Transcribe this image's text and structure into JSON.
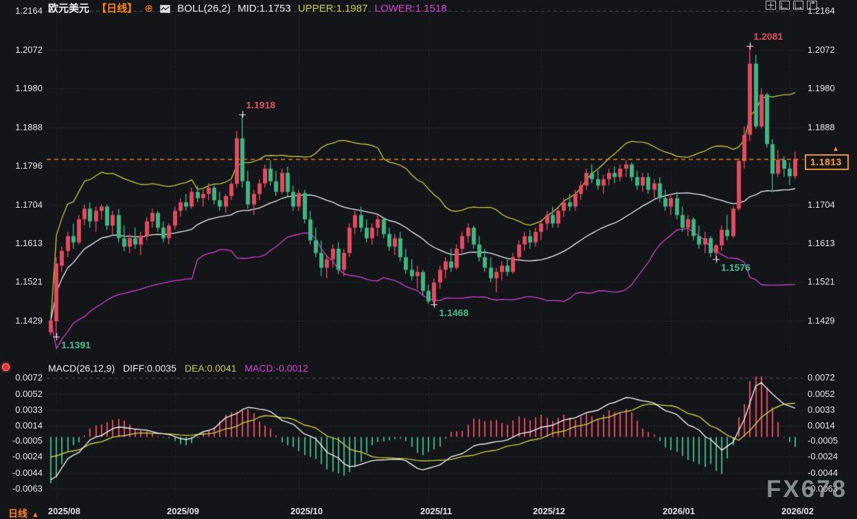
{
  "header": {
    "symbol": "欧元美元",
    "period": "【日线】",
    "add_icon": "⊕",
    "boll_label": "BOLL(26,2)",
    "mid_label": "MID:1.1753",
    "upper_label": "UPPER:1.1987",
    "lower_label": "LOWER:1.1518"
  },
  "toolbar": {
    "icons": [
      "crosshair-icon",
      "align-left-icon",
      "align-right-icon",
      "export-icon"
    ]
  },
  "macd_header": {
    "name": "MACD(26,12,9)",
    "diff_label": "DIFF:0.0035",
    "dea_label": "DEA:0.0041",
    "macd_label": "MACD:-0.0012"
  },
  "footer": {
    "period": "日线",
    "arrow": "▲"
  },
  "last_price": {
    "value": "1.1813",
    "price": 1.1813,
    "arrow": "▲"
  },
  "watermark": "FX678",
  "colors": {
    "bg": "#141519",
    "up": "#e14b5f",
    "down": "#3db584",
    "boll_mid": "#f5f5f5",
    "boll_upper": "#ccd23c",
    "boll_lower": "#d743d7",
    "diff_line": "#f5f5f5",
    "dea_line": "#ccd23c",
    "accent_orange": "#ff8400",
    "last_price_line": "#f08c00",
    "annotation_high": "#e05263",
    "annotation_low": "#3fbf8f",
    "grid": "#3a3b40",
    "grid_dash": "#4a4b50",
    "axis_text": "#e8e8ea"
  },
  "chart_data": {
    "type": "candlestick+macd",
    "symbol": "EUR/USD 欧元美元",
    "period": "daily",
    "boll_params": {
      "period": 26,
      "mult": 2
    },
    "macd_params": [
      26,
      12,
      9
    ],
    "price_ticks": [
      1.2164,
      1.2072,
      1.198,
      1.1888,
      1.1796,
      1.1704,
      1.1613,
      1.1521,
      1.1429
    ],
    "macd_ticks": [
      0.0072,
      0.0052,
      0.0033,
      0.0014,
      -0.0005,
      -0.0024,
      -0.0044,
      -0.0063
    ],
    "month_labels": [
      {
        "label": "2025/08",
        "index": 1
      },
      {
        "label": "2025/09",
        "index": 22
      },
      {
        "label": "2025/10",
        "index": 44
      },
      {
        "label": "2025/11",
        "index": 67
      },
      {
        "label": "2025/12",
        "index": 87
      },
      {
        "label": "2026/01",
        "index": 110
      },
      {
        "label": "2026/02",
        "index": 131
      }
    ],
    "annotations": [
      {
        "text": "1.1391",
        "index": 1,
        "at": "low",
        "color": "#3fbf8f"
      },
      {
        "text": "1.1918",
        "index": 34,
        "at": "high",
        "color": "#e05263"
      },
      {
        "text": "1.1468",
        "index": 68,
        "at": "low",
        "color": "#3fbf8f"
      },
      {
        "text": "1.1576",
        "index": 118,
        "at": "low",
        "color": "#3fbf8f"
      },
      {
        "text": "1.2081",
        "index": 124,
        "at": "high",
        "color": "#e05263"
      }
    ],
    "candles": [
      [
        1.1402,
        1.1435,
        1.1395,
        1.143
      ],
      [
        1.1428,
        1.158,
        1.1391,
        1.1565
      ],
      [
        1.156,
        1.1605,
        1.1545,
        1.1595
      ],
      [
        1.1595,
        1.164,
        1.158,
        1.163
      ],
      [
        1.163,
        1.166,
        1.16,
        1.1615
      ],
      [
        1.1615,
        1.168,
        1.161,
        1.167
      ],
      [
        1.167,
        1.1705,
        1.1655,
        1.1695
      ],
      [
        1.1695,
        1.171,
        1.165,
        1.1665
      ],
      [
        1.1665,
        1.17,
        1.164,
        1.169
      ],
      [
        1.169,
        1.1705,
        1.167,
        1.17
      ],
      [
        1.17,
        1.1705,
        1.1645,
        1.1655
      ],
      [
        1.1655,
        1.169,
        1.1635,
        1.168
      ],
      [
        1.168,
        1.1695,
        1.1615,
        1.1625
      ],
      [
        1.1625,
        1.1655,
        1.1595,
        1.1605
      ],
      [
        1.1605,
        1.1635,
        1.159,
        1.1625
      ],
      [
        1.1625,
        1.165,
        1.16,
        1.161
      ],
      [
        1.161,
        1.164,
        1.1585,
        1.163
      ],
      [
        1.163,
        1.1675,
        1.162,
        1.1665
      ],
      [
        1.1665,
        1.1695,
        1.165,
        1.1685
      ],
      [
        1.1685,
        1.169,
        1.164,
        1.165
      ],
      [
        1.165,
        1.1665,
        1.1615,
        1.1625
      ],
      [
        1.1625,
        1.166,
        1.161,
        1.1655
      ],
      [
        1.1655,
        1.17,
        1.1645,
        1.169
      ],
      [
        1.169,
        1.172,
        1.1675,
        1.171
      ],
      [
        1.171,
        1.173,
        1.169,
        1.17
      ],
      [
        1.17,
        1.1745,
        1.1695,
        1.1735
      ],
      [
        1.1735,
        1.175,
        1.171,
        1.172
      ],
      [
        1.172,
        1.174,
        1.17,
        1.173
      ],
      [
        1.173,
        1.1755,
        1.1715,
        1.1745
      ],
      [
        1.1745,
        1.175,
        1.1705,
        1.1715
      ],
      [
        1.1715,
        1.1735,
        1.169,
        1.17
      ],
      [
        1.17,
        1.173,
        1.1685,
        1.1725
      ],
      [
        1.1725,
        1.176,
        1.1715,
        1.1754
      ],
      [
        1.1754,
        1.188,
        1.1745,
        1.1862
      ],
      [
        1.1862,
        1.1918,
        1.1745,
        1.176
      ],
      [
        1.176,
        1.1785,
        1.1695,
        1.1705
      ],
      [
        1.1705,
        1.174,
        1.168,
        1.173
      ],
      [
        1.173,
        1.1765,
        1.1715,
        1.1755
      ],
      [
        1.1755,
        1.18,
        1.1745,
        1.179
      ],
      [
        1.179,
        1.181,
        1.175,
        1.176
      ],
      [
        1.176,
        1.1785,
        1.1725,
        1.1735
      ],
      [
        1.1735,
        1.179,
        1.173,
        1.178
      ],
      [
        1.178,
        1.1795,
        1.1725,
        1.1735
      ],
      [
        1.1735,
        1.175,
        1.169,
        1.17
      ],
      [
        1.17,
        1.174,
        1.169,
        1.1732
      ],
      [
        1.1732,
        1.174,
        1.166,
        1.167
      ],
      [
        1.167,
        1.169,
        1.161,
        1.162
      ],
      [
        1.162,
        1.165,
        1.158,
        1.159
      ],
      [
        1.159,
        1.162,
        1.1535,
        1.1555
      ],
      [
        1.1555,
        1.1585,
        1.153,
        1.1575
      ],
      [
        1.1575,
        1.161,
        1.1555,
        1.16
      ],
      [
        1.16,
        1.1615,
        1.154,
        1.155
      ],
      [
        1.155,
        1.16,
        1.1535,
        1.159
      ],
      [
        1.159,
        1.166,
        1.158,
        1.165
      ],
      [
        1.165,
        1.169,
        1.1635,
        1.168
      ],
      [
        1.168,
        1.17,
        1.164,
        1.165
      ],
      [
        1.165,
        1.167,
        1.1615,
        1.1625
      ],
      [
        1.1625,
        1.166,
        1.161,
        1.165
      ],
      [
        1.165,
        1.168,
        1.163,
        1.167
      ],
      [
        1.167,
        1.1675,
        1.1625,
        1.1635
      ],
      [
        1.1635,
        1.165,
        1.1595,
        1.1605
      ],
      [
        1.1605,
        1.1635,
        1.1585,
        1.1625
      ],
      [
        1.1625,
        1.164,
        1.157,
        1.158
      ],
      [
        1.158,
        1.16,
        1.154,
        1.155
      ],
      [
        1.155,
        1.1575,
        1.1525,
        1.1535
      ],
      [
        1.1535,
        1.156,
        1.1505,
        1.1545
      ],
      [
        1.1545,
        1.155,
        1.149,
        1.15
      ],
      [
        1.15,
        1.1515,
        1.1469,
        1.1475
      ],
      [
        1.1475,
        1.153,
        1.1468,
        1.152
      ],
      [
        1.152,
        1.156,
        1.1505,
        1.155
      ],
      [
        1.155,
        1.158,
        1.153,
        1.157
      ],
      [
        1.157,
        1.16,
        1.1545,
        1.1555
      ],
      [
        1.1555,
        1.161,
        1.155,
        1.16
      ],
      [
        1.16,
        1.164,
        1.159,
        1.163
      ],
      [
        1.163,
        1.166,
        1.1615,
        1.165
      ],
      [
        1.165,
        1.1655,
        1.16,
        1.161
      ],
      [
        1.161,
        1.163,
        1.157,
        1.158
      ],
      [
        1.158,
        1.16,
        1.1545,
        1.1555
      ],
      [
        1.1555,
        1.158,
        1.152,
        1.153
      ],
      [
        1.153,
        1.1555,
        1.1496,
        1.1545
      ],
      [
        1.1545,
        1.157,
        1.1525,
        1.156
      ],
      [
        1.156,
        1.158,
        1.1535,
        1.1545
      ],
      [
        1.1545,
        1.159,
        1.154,
        1.158
      ],
      [
        1.158,
        1.162,
        1.157,
        1.161
      ],
      [
        1.161,
        1.164,
        1.1595,
        1.163
      ],
      [
        1.163,
        1.1645,
        1.16,
        1.1615
      ],
      [
        1.1615,
        1.165,
        1.1605,
        1.164
      ],
      [
        1.164,
        1.167,
        1.162,
        1.166
      ],
      [
        1.166,
        1.169,
        1.1645,
        1.168
      ],
      [
        1.168,
        1.17,
        1.165,
        1.166
      ],
      [
        1.166,
        1.17,
        1.165,
        1.169
      ],
      [
        1.169,
        1.172,
        1.1675,
        1.171
      ],
      [
        1.171,
        1.173,
        1.169,
        1.17
      ],
      [
        1.17,
        1.174,
        1.169,
        1.173
      ],
      [
        1.173,
        1.176,
        1.1715,
        1.175
      ],
      [
        1.175,
        1.179,
        1.174,
        1.178
      ],
      [
        1.178,
        1.18,
        1.1755,
        1.1765
      ],
      [
        1.1765,
        1.1785,
        1.174,
        1.175
      ],
      [
        1.175,
        1.1775,
        1.173,
        1.1765
      ],
      [
        1.1765,
        1.179,
        1.175,
        1.178
      ],
      [
        1.178,
        1.1795,
        1.1755,
        1.177
      ],
      [
        1.177,
        1.18,
        1.176,
        1.179
      ],
      [
        1.179,
        1.181,
        1.177,
        1.18
      ],
      [
        1.18,
        1.1805,
        1.176,
        1.177
      ],
      [
        1.177,
        1.1785,
        1.174,
        1.175
      ],
      [
        1.175,
        1.178,
        1.1735,
        1.177
      ],
      [
        1.177,
        1.178,
        1.173,
        1.174
      ],
      [
        1.174,
        1.1765,
        1.172,
        1.1755
      ],
      [
        1.1755,
        1.177,
        1.171,
        1.172
      ],
      [
        1.172,
        1.174,
        1.169,
        1.17
      ],
      [
        1.17,
        1.173,
        1.168,
        1.172
      ],
      [
        1.172,
        1.1735,
        1.167,
        1.168
      ],
      [
        1.168,
        1.17,
        1.164,
        1.165
      ],
      [
        1.165,
        1.168,
        1.163,
        1.167
      ],
      [
        1.167,
        1.1675,
        1.162,
        1.163
      ],
      [
        1.163,
        1.1655,
        1.16,
        1.161
      ],
      [
        1.161,
        1.164,
        1.159,
        1.1625
      ],
      [
        1.1625,
        1.163,
        1.158,
        1.159
      ],
      [
        1.159,
        1.1612,
        1.1576,
        1.1608
      ],
      [
        1.1608,
        1.1655,
        1.1595,
        1.1645
      ],
      [
        1.1645,
        1.168,
        1.162,
        1.163
      ],
      [
        1.163,
        1.17,
        1.1625,
        1.1695
      ],
      [
        1.1695,
        1.1815,
        1.169,
        1.1808
      ],
      [
        1.1808,
        1.189,
        1.179,
        1.187
      ],
      [
        1.187,
        1.2081,
        1.1855,
        1.2039
      ],
      [
        1.2039,
        1.206,
        1.1884,
        1.189
      ],
      [
        1.189,
        1.198,
        1.1885,
        1.1966
      ],
      [
        1.1966,
        1.197,
        1.184,
        1.1848
      ],
      [
        1.1848,
        1.186,
        1.1734,
        1.1778
      ],
      [
        1.1778,
        1.1835,
        1.177,
        1.1811
      ],
      [
        1.1811,
        1.182,
        1.177,
        1.179
      ],
      [
        1.179,
        1.1805,
        1.1751,
        1.1772
      ],
      [
        1.1772,
        1.183,
        1.1765,
        1.1813
      ]
    ],
    "diff_points": [
      [
        0,
        -0.0052
      ],
      [
        4,
        -0.0022
      ],
      [
        8,
        0.0
      ],
      [
        12,
        0.0012
      ],
      [
        16,
        0.0009
      ],
      [
        20,
        0.0004
      ],
      [
        24,
        -0.0003
      ],
      [
        28,
        0.0008
      ],
      [
        32,
        0.0026
      ],
      [
        35,
        0.0036
      ],
      [
        38,
        0.0033
      ],
      [
        42,
        0.0018
      ],
      [
        46,
        0.0001
      ],
      [
        50,
        -0.0022
      ],
      [
        53,
        -0.0036
      ],
      [
        58,
        -0.0028
      ],
      [
        62,
        -0.0027
      ],
      [
        66,
        -0.004
      ],
      [
        68,
        -0.0036
      ],
      [
        72,
        -0.0022
      ],
      [
        76,
        -0.0009
      ],
      [
        80,
        -0.0005
      ],
      [
        84,
        0.0005
      ],
      [
        88,
        0.0013
      ],
      [
        92,
        0.0022
      ],
      [
        96,
        0.0031
      ],
      [
        100,
        0.0042
      ],
      [
        102,
        0.0048
      ],
      [
        106,
        0.0043
      ],
      [
        110,
        0.003
      ],
      [
        114,
        0.0012
      ],
      [
        117,
        -0.0003
      ],
      [
        119,
        -0.0016
      ],
      [
        121,
        -0.0006
      ],
      [
        123,
        0.0022
      ],
      [
        125,
        0.0062
      ],
      [
        126,
        0.0066
      ],
      [
        128,
        0.0052
      ],
      [
        130,
        0.004
      ],
      [
        132,
        0.0035
      ]
    ],
    "dea_points": [
      [
        0,
        -0.0024
      ],
      [
        4,
        -0.0017
      ],
      [
        8,
        -0.0007
      ],
      [
        12,
        0.0001
      ],
      [
        16,
        0.0005
      ],
      [
        20,
        0.0004
      ],
      [
        24,
        0.0002
      ],
      [
        28,
        0.0004
      ],
      [
        32,
        0.0011
      ],
      [
        35,
        0.0019
      ],
      [
        38,
        0.0026
      ],
      [
        42,
        0.0023
      ],
      [
        46,
        0.0013
      ],
      [
        50,
        -0.0001
      ],
      [
        54,
        -0.0017
      ],
      [
        58,
        -0.0025
      ],
      [
        62,
        -0.0026
      ],
      [
        66,
        -0.0029
      ],
      [
        70,
        -0.0028
      ],
      [
        74,
        -0.0023
      ],
      [
        78,
        -0.0017
      ],
      [
        82,
        -0.001
      ],
      [
        86,
        -0.0003
      ],
      [
        90,
        0.0006
      ],
      [
        94,
        0.0014
      ],
      [
        98,
        0.0023
      ],
      [
        102,
        0.0031
      ],
      [
        106,
        0.004
      ],
      [
        110,
        0.0038
      ],
      [
        114,
        0.0027
      ],
      [
        118,
        0.0011
      ],
      [
        120,
        0.0002
      ],
      [
        122,
        -0.0004
      ],
      [
        124,
        0.0008
      ],
      [
        126,
        0.0024
      ],
      [
        128,
        0.0034
      ],
      [
        130,
        0.004
      ],
      [
        132,
        0.0041
      ]
    ]
  }
}
